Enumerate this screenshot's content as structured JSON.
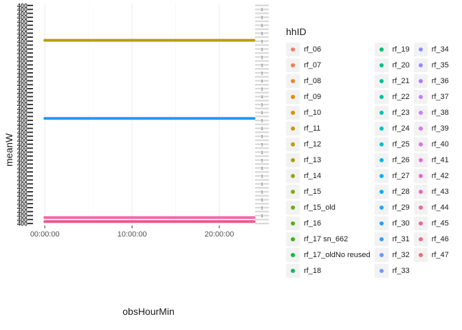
{
  "chart_data": {
    "type": "line",
    "xlabel": "obsHourMin",
    "ylabel": "meanW",
    "x_ticks": [
      "00:00:00",
      "10:00:00",
      "20:00:00"
    ],
    "x_tick_hours": [
      0,
      10,
      20
    ],
    "xlim_hours": [
      -1.2,
      25.2
    ],
    "ylim_rank": [
      -0.5,
      55.5
    ],
    "y_tick_label": "400",
    "y_tick_count": 56,
    "right_strip_label": "1",
    "grid": true,
    "series": [
      {
        "color": "#b79f00",
        "y_rank": 46.2,
        "x_range_hours": [
          0,
          23.98
        ]
      },
      {
        "color": "#1f9cf0",
        "y_rank": 26.5,
        "x_range_hours": [
          0,
          23.98
        ]
      },
      {
        "color": "#f564a9",
        "y_rank": 1.5,
        "x_range_hours": [
          0,
          23.98
        ]
      },
      {
        "color": "#f0558a",
        "y_rank": 0.5,
        "x_range_hours": [
          0,
          23.98
        ]
      }
    ]
  },
  "legend": {
    "title": "hhID",
    "columns": [
      [
        {
          "label": "rf_06",
          "color": "#f8766d"
        },
        {
          "label": "rf_07",
          "color": "#f27d52"
        },
        {
          "label": "rf_08",
          "color": "#e98532"
        },
        {
          "label": "rf_09",
          "color": "#de8c00"
        },
        {
          "label": "rf_10",
          "color": "#d29300"
        },
        {
          "label": "rf_11",
          "color": "#c49a00"
        },
        {
          "label": "rf_12",
          "color": "#b79f00"
        },
        {
          "label": "rf_13",
          "color": "#a6a400"
        },
        {
          "label": "rf_14",
          "color": "#93aa00"
        },
        {
          "label": "rf_15",
          "color": "#7fae00"
        },
        {
          "label": "rf_15_old",
          "color": "#6bb100"
        },
        {
          "label": "rf_16",
          "color": "#53b400"
        },
        {
          "label": "rf_17 sn_662",
          "color": "#35b700"
        },
        {
          "label": "rf_17_oldNo reused",
          "color": "#00ba38"
        },
        {
          "label": "rf_18",
          "color": "#00bc56"
        }
      ],
      [
        {
          "label": "rf_19",
          "color": "#00be6c"
        },
        {
          "label": "rf_20",
          "color": "#00c07e"
        },
        {
          "label": "rf_21",
          "color": "#00c08f"
        },
        {
          "label": "rf_22",
          "color": "#00c19f"
        },
        {
          "label": "rf_23",
          "color": "#00c0af"
        },
        {
          "label": "rf_24",
          "color": "#00bfc0"
        },
        {
          "label": "rf_25",
          "color": "#00bdcf"
        },
        {
          "label": "rf_26",
          "color": "#00bade"
        },
        {
          "label": "rf_27",
          "color": "#00b5eb"
        },
        {
          "label": "rf_28",
          "color": "#00b0f6"
        },
        {
          "label": "rf_29",
          "color": "#18a9fc"
        },
        {
          "label": "rf_30",
          "color": "#1fa1ff"
        },
        {
          "label": "rf_31",
          "color": "#3c98ff"
        },
        {
          "label": "rf_32",
          "color": "#619cff"
        },
        {
          "label": "rf_33",
          "color": "#7995ff"
        }
      ],
      [
        {
          "label": "rf_34",
          "color": "#8c8cff"
        },
        {
          "label": "rf_35",
          "color": "#9d83ff"
        },
        {
          "label": "rf_36",
          "color": "#ac7aff"
        },
        {
          "label": "rf_37",
          "color": "#b983ff"
        },
        {
          "label": "rf_38",
          "color": "#c77cff"
        },
        {
          "label": "rf_39",
          "color": "#d378f4"
        },
        {
          "label": "rf_40",
          "color": "#dc71e9"
        },
        {
          "label": "rf_41",
          "color": "#e36cda"
        },
        {
          "label": "rf_42",
          "color": "#ea67cb"
        },
        {
          "label": "rf_43",
          "color": "#f064b9"
        },
        {
          "label": "rf_44",
          "color": "#f463a6"
        },
        {
          "label": "rf_45",
          "color": "#f66493"
        },
        {
          "label": "rf_46",
          "color": "#f6667f"
        },
        {
          "label": "rf_47",
          "color": "#f4696b"
        }
      ]
    ]
  }
}
